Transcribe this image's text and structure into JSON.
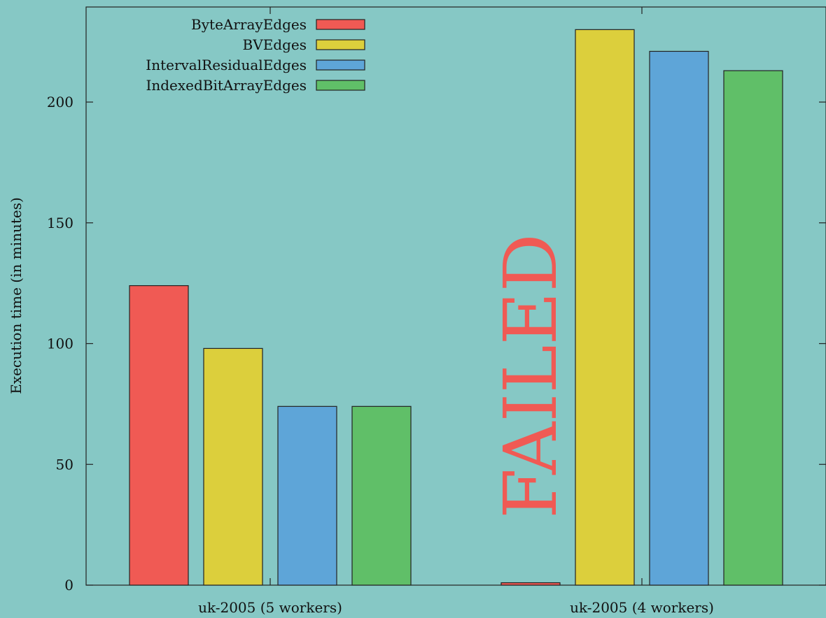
{
  "chart_data": {
    "type": "bar",
    "categories": [
      "uk-2005 (5 workers)",
      "uk-2005 (4 workers)"
    ],
    "series": [
      {
        "name": "ByteArrayEdges",
        "values": [
          124,
          1
        ],
        "color": "#f05a54"
      },
      {
        "name": "BVEdges",
        "values": [
          98,
          230
        ],
        "color": "#dccf3c"
      },
      {
        "name": "IntervalResidualEdges",
        "values": [
          74,
          221
        ],
        "color": "#5ea5d8"
      },
      {
        "name": "IndexedBitArrayEdges",
        "values": [
          74,
          213
        ],
        "color": "#60bf68"
      }
    ],
    "title": "",
    "xlabel": "",
    "ylabel": "Execution time (in minutes)",
    "ylim": [
      0,
      240
    ],
    "yticks": [
      0,
      50,
      100,
      150,
      200
    ],
    "legend_position": "top-left",
    "grid": false,
    "annotations": [
      {
        "text": "FAILED",
        "category": "uk-2005 (4 workers)",
        "series": "ByteArrayEdges",
        "color": "#f05a54",
        "orientation": "vertical"
      }
    ],
    "background": "#86c8c5"
  }
}
